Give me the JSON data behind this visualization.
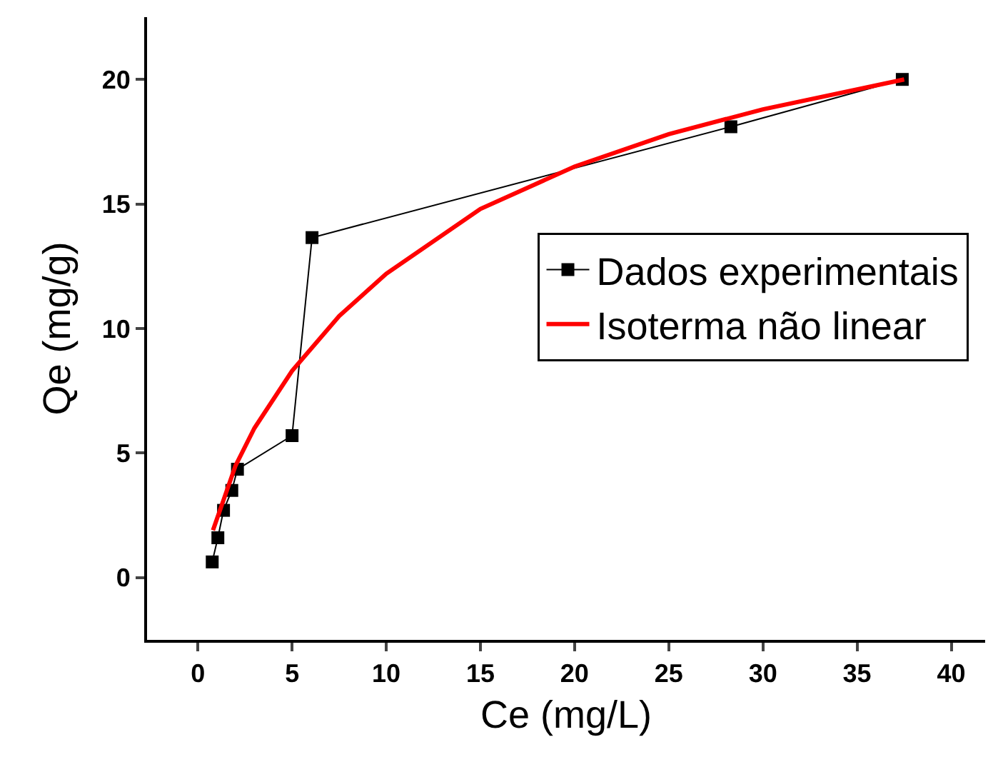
{
  "chart_data": {
    "type": "line",
    "xlabel": "Ce (mg/L)",
    "ylabel": "Qe (mg/g)",
    "xlim": [
      -2.7,
      41.8
    ],
    "ylim": [
      -2.5,
      22.5
    ],
    "xticks": [
      0,
      5,
      10,
      15,
      20,
      25,
      30,
      35,
      40
    ],
    "yticks": [
      0,
      5,
      10,
      15,
      20
    ],
    "grid": false,
    "legend": "right",
    "series": [
      {
        "name": "Dados experimentais",
        "color": "#000000",
        "marker": "square",
        "line_style": "solid",
        "x": [
          0.76,
          1.06,
          1.36,
          1.8,
          2.1,
          5.0,
          6.06,
          28.3,
          37.4
        ],
        "values": [
          0.63,
          1.6,
          2.7,
          3.5,
          4.35,
          5.7,
          13.65,
          18.1,
          20.0
        ]
      },
      {
        "name": "Isoterma não linear",
        "color": "#ff0000",
        "marker": "none",
        "line_style": "solid",
        "x": [
          0.8,
          2,
          3,
          5,
          7.5,
          10,
          15,
          20,
          25,
          30,
          37.5
        ],
        "values": [
          1.9,
          4.5,
          6.0,
          8.3,
          10.5,
          12.2,
          14.8,
          16.5,
          17.8,
          18.8,
          20.0
        ]
      }
    ]
  }
}
